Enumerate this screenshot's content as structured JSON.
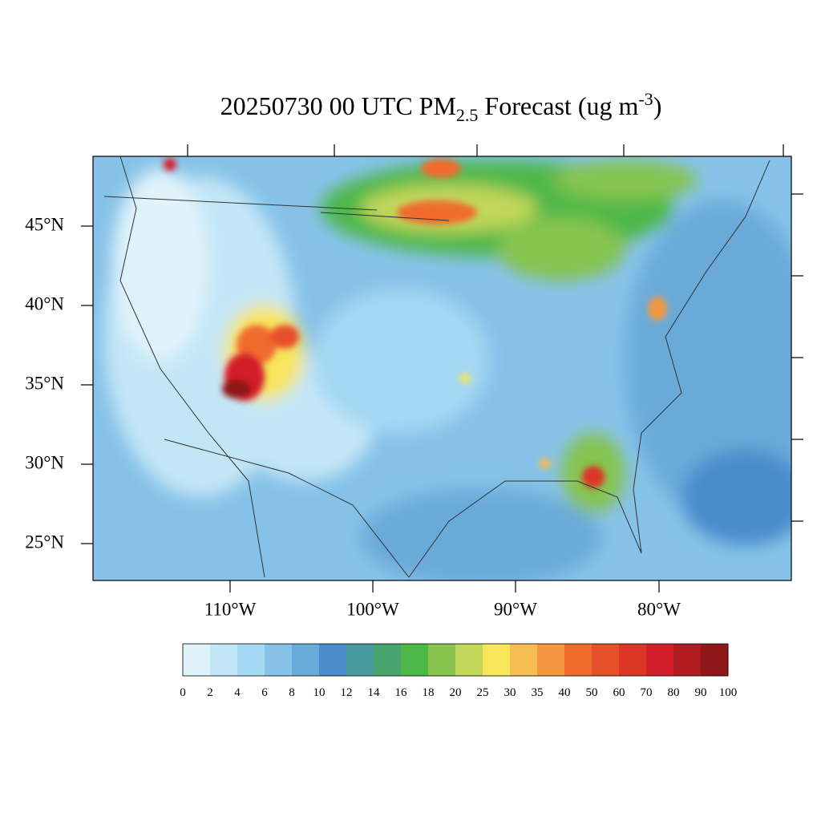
{
  "title": {
    "parts": [
      "20250730 00 UTC PM",
      "2.5",
      " Forecast (ug m",
      "-3",
      ")"
    ]
  },
  "map": {
    "lat_labels": [
      "45°N",
      "40°N",
      "35°N",
      "30°N",
      "25°N"
    ],
    "lon_labels": [
      "110°W",
      "100°W",
      "90°W",
      "80°W"
    ]
  },
  "colorbar": {
    "levels": [
      0,
      2,
      4,
      6,
      8,
      10,
      12,
      14,
      16,
      18,
      20,
      25,
      30,
      35,
      40,
      50,
      60,
      70,
      80,
      90,
      100
    ],
    "colors": [
      "#e0f3fb",
      "#c3e6f7",
      "#a4d8f3",
      "#86c2e8",
      "#6aaad9",
      "#4a8ccc",
      "#4a9aa0",
      "#4aa36e",
      "#4db848",
      "#86c44f",
      "#c2d65a",
      "#f7e55a",
      "#f6bd50",
      "#f39841",
      "#f06c2e",
      "#e65029",
      "#dd3627",
      "#d41f2a",
      "#b01b22",
      "#8f1619"
    ]
  }
}
